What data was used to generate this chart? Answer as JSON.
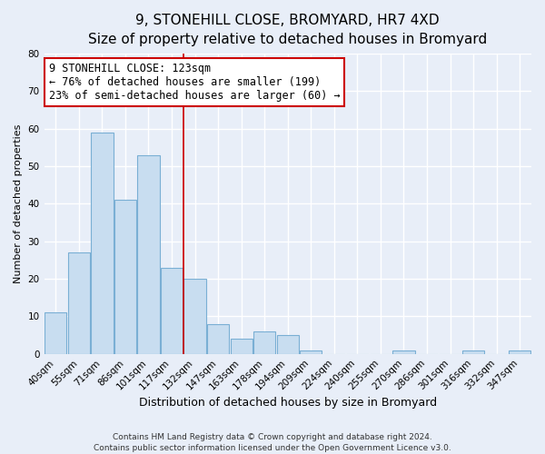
{
  "title": "9, STONEHILL CLOSE, BROMYARD, HR7 4XD",
  "subtitle": "Size of property relative to detached houses in Bromyard",
  "xlabel": "Distribution of detached houses by size in Bromyard",
  "ylabel": "Number of detached properties",
  "bar_labels": [
    "40sqm",
    "55sqm",
    "71sqm",
    "86sqm",
    "101sqm",
    "117sqm",
    "132sqm",
    "147sqm",
    "163sqm",
    "178sqm",
    "194sqm",
    "209sqm",
    "224sqm",
    "240sqm",
    "255sqm",
    "270sqm",
    "286sqm",
    "301sqm",
    "316sqm",
    "332sqm",
    "347sqm"
  ],
  "bar_values": [
    11,
    27,
    59,
    41,
    53,
    23,
    20,
    8,
    4,
    6,
    5,
    1,
    0,
    0,
    0,
    1,
    0,
    0,
    1,
    0,
    1
  ],
  "bar_color": "#c8ddf0",
  "bar_edge_color": "#7aafd4",
  "annotation_line_color": "#cc0000",
  "annotation_box_text_line1": "9 STONEHILL CLOSE: 123sqm",
  "annotation_box_text_line2": "← 76% of detached houses are smaller (199)",
  "annotation_box_text_line3": "23% of semi-detached houses are larger (60) →",
  "annotation_box_color": "white",
  "annotation_box_edge_color": "#cc0000",
  "ylim": [
    0,
    80
  ],
  "yticks": [
    0,
    10,
    20,
    30,
    40,
    50,
    60,
    70,
    80
  ],
  "footer_line1": "Contains HM Land Registry data © Crown copyright and database right 2024.",
  "footer_line2": "Contains public sector information licensed under the Open Government Licence v3.0.",
  "background_color": "#e8eef8",
  "plot_bg_color": "#e8eef8",
  "grid_color": "#ffffff",
  "title_fontsize": 11,
  "subtitle_fontsize": 10,
  "xlabel_fontsize": 9,
  "ylabel_fontsize": 8,
  "tick_fontsize": 7.5,
  "footer_fontsize": 6.5,
  "annotation_fontsize": 8.5,
  "red_line_x": 5.5
}
